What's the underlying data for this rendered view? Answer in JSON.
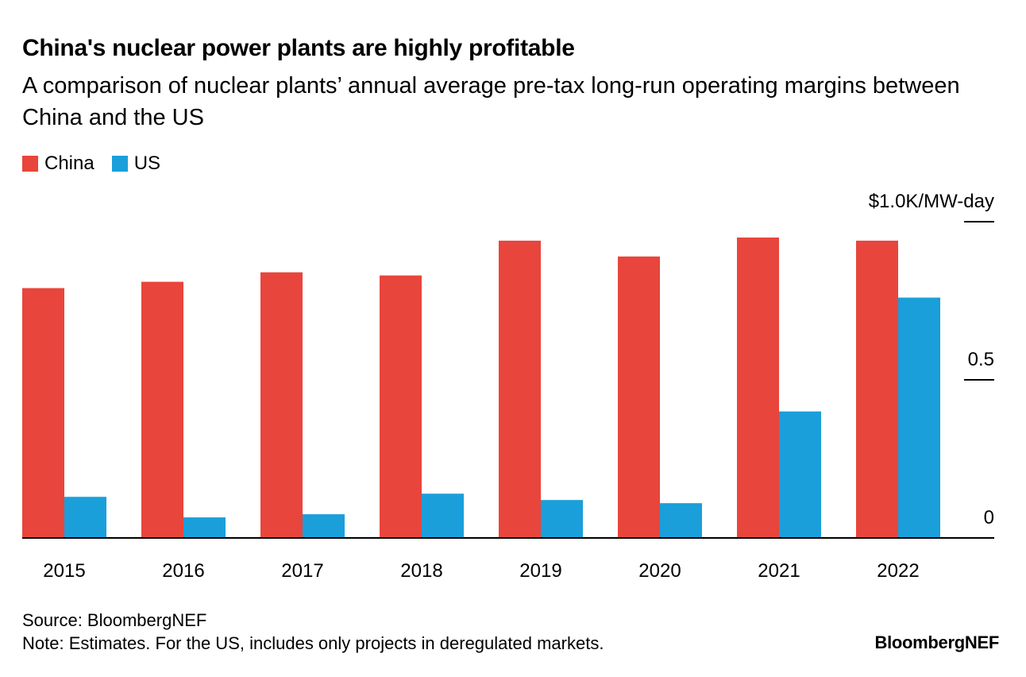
{
  "chart_data": {
    "type": "bar",
    "title": "China's nuclear power plants are highly profitable",
    "subtitle": "A comparison of nuclear plants’ annual average pre-tax long-run operating margins between China and the US",
    "categories": [
      "2015",
      "2016",
      "2017",
      "2018",
      "2019",
      "2020",
      "2021",
      "2022"
    ],
    "series": [
      {
        "name": "China",
        "color": "#e8453c",
        "values": [
          0.79,
          0.81,
          0.84,
          0.83,
          0.94,
          0.89,
          0.95,
          0.94
        ]
      },
      {
        "name": "US",
        "color": "#1a9fda",
        "values": [
          0.13,
          0.065,
          0.075,
          0.14,
          0.12,
          0.11,
          0.4,
          0.76
        ]
      }
    ],
    "ylim": [
      0,
      1.0
    ],
    "yticks": [
      {
        "value": 1.0,
        "label": "$1.0K/MW-day"
      },
      {
        "value": 0.5,
        "label": "0.5"
      },
      {
        "value": 0,
        "label": "0"
      }
    ],
    "xlabel": "",
    "ylabel": "$K/MW-day",
    "legend": "top-left",
    "source": "Source: BloombergNEF",
    "note": "Note: Estimates. For the US, includes only projects in deregulated markets.",
    "brand": "BloombergNEF"
  }
}
